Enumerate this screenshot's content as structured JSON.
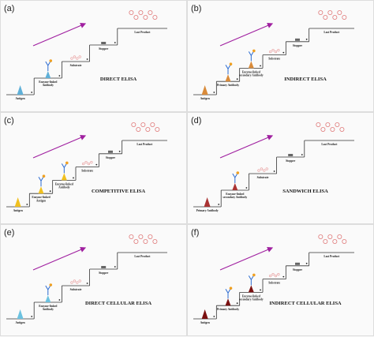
{
  "panels": [
    {
      "letter": "(a)",
      "title": "DIRECT ELISA",
      "steps": [
        [
          "Antigen"
        ],
        [
          "Enzyme-linked",
          "Antibody"
        ],
        [
          "Substrate"
        ],
        [
          "Stopper"
        ],
        [
          "Last Product"
        ]
      ]
    },
    {
      "letter": "(b)",
      "title": "INDIRECT ELISA",
      "steps": [
        [
          "Antigen"
        ],
        [
          "Primary Antibody"
        ],
        [
          "Enzyme-linked",
          "secondary Antibody"
        ],
        [
          "Substrate"
        ],
        [
          "Stopper"
        ],
        [
          "Last Product"
        ]
      ]
    },
    {
      "letter": "(c)",
      "title": "COMPETITIVE ELISA",
      "steps": [
        [
          "Antigen"
        ],
        [
          "Enzyme-linked",
          "Antigen"
        ],
        [
          "Enzyme-linked",
          "Antibody"
        ],
        [
          "Substrate"
        ],
        [
          "Stopper"
        ],
        [
          "Last Product"
        ]
      ]
    },
    {
      "letter": "(d)",
      "title": "SANDWICH ELISA",
      "steps": [
        [
          "Primary Antibody"
        ],
        [
          "Enzyme-linked",
          "secondary Antibody"
        ],
        [
          "Substrate"
        ],
        [
          "Stopper"
        ],
        [
          "Last Product"
        ]
      ]
    },
    {
      "letter": "(e)",
      "title": "DIRECT CELLULAR ELISA",
      "steps": [
        [
          "Antigen"
        ],
        [
          "Enzyme-linked",
          "Antibody"
        ],
        [
          "Substrate"
        ],
        [
          "Stopper"
        ],
        [
          "Last Product"
        ]
      ]
    },
    {
      "letter": "(f)",
      "title": "INDIRECT CELLULAR ELISA",
      "steps": [
        [
          "Antigen"
        ],
        [
          "Primary Antibody"
        ],
        [
          "Enzyme-linked",
          "secondary Antibody"
        ],
        [
          "Substrate"
        ],
        [
          "Stopper"
        ],
        [
          "Last Product"
        ]
      ]
    }
  ]
}
